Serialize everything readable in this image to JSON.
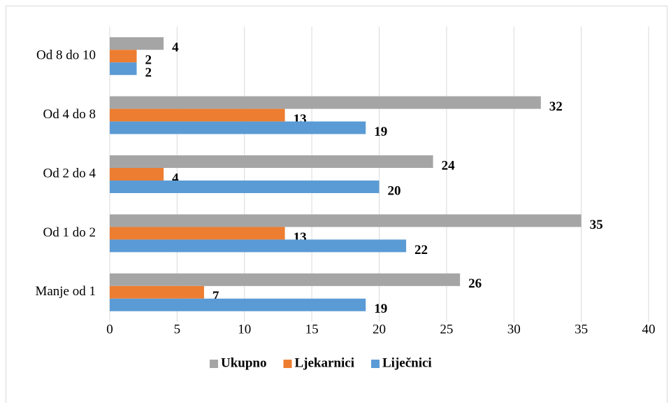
{
  "chart_data": {
    "type": "bar",
    "orientation": "horizontal",
    "categories": [
      "Manje od 1",
      "Od 1 do 2",
      "Od 2 do 4",
      "Od 4 do 8",
      "Od 8 do 10"
    ],
    "series": [
      {
        "name": "Ukupno",
        "color": "#a5a5a5",
        "values": [
          26,
          35,
          24,
          32,
          4
        ]
      },
      {
        "name": "Ljekarnici",
        "color": "#ed7d31",
        "values": [
          7,
          13,
          4,
          13,
          2
        ]
      },
      {
        "name": "Liječnici",
        "color": "#5b9bd5",
        "values": [
          19,
          22,
          20,
          19,
          2
        ]
      }
    ],
    "xlim": [
      0,
      40
    ],
    "xticks": [
      0,
      5,
      10,
      15,
      20,
      25,
      30,
      35,
      40
    ],
    "grid": true,
    "legend": "bottom"
  }
}
